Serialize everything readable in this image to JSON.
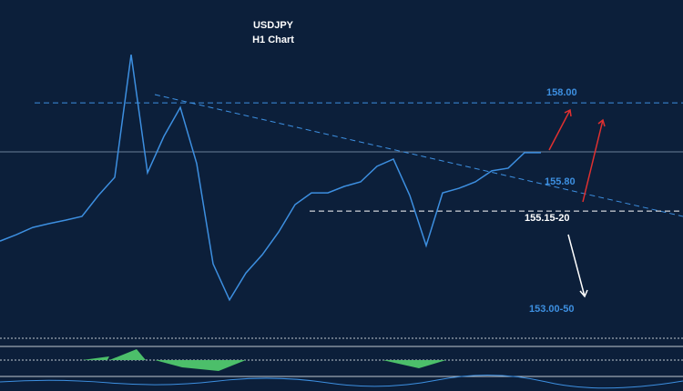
{
  "chart_data": {
    "type": "line",
    "title": "USDJPY",
    "subtitle": "H1 Chart",
    "ylim": [
      151.8,
      160.71
    ],
    "series": [
      {
        "color": "#3d8fe0",
        "values": [
          154.36,
          154.53,
          154.72,
          154.82,
          154.91,
          155.01,
          155.56,
          156.04,
          159.27,
          156.16,
          157.12,
          157.88,
          156.4,
          153.76,
          152.81,
          153.52,
          154.0,
          154.6,
          155.32,
          155.63,
          155.63,
          155.8,
          155.92,
          156.33,
          156.52,
          155.56,
          154.24,
          155.63,
          155.75,
          155.92,
          156.21,
          156.28,
          156.69,
          156.69
        ]
      }
    ],
    "levels": [
      {
        "label": "158.00",
        "value": 158.0,
        "line": true,
        "color": "#3d8fe0"
      },
      {
        "label": "155.80",
        "value": 155.8,
        "line": false,
        "color": "#3d8fe0"
      },
      {
        "label": "155.15-20",
        "value": 155.15,
        "line": true,
        "color": "#ffffff"
      },
      {
        "label": "153.00-50",
        "value": 153.0,
        "line": false,
        "color": "#3d8fe0"
      }
    ]
  }
}
